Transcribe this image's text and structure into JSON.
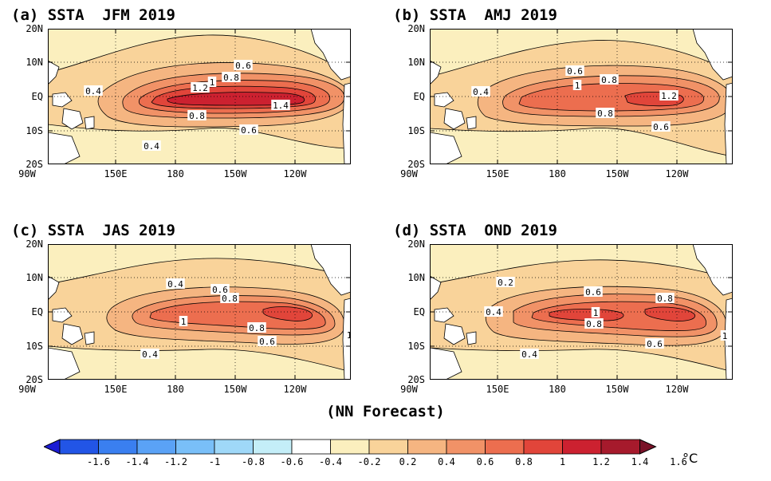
{
  "panels": [
    {
      "title": "(a) SSTA  JFM 2019",
      "contour_labels": [
        "0.6",
        "0.8",
        "1",
        "1.2",
        "1.4",
        "0.8",
        "0.6",
        "0.4",
        "0.4"
      ]
    },
    {
      "title": "(b) SSTA  AMJ 2019",
      "contour_labels": [
        "0.6",
        "0.8",
        "1",
        "1.2",
        "0.8",
        "0.6",
        "0.4"
      ]
    },
    {
      "title": "(c) SSTA  JAS 2019",
      "contour_labels": [
        "0.4",
        "0.6",
        "0.8",
        "1",
        "0.8",
        "0.6",
        "1",
        "0.4"
      ]
    },
    {
      "title": "(d) SSTA  OND 2019",
      "contour_labels": [
        "0.2",
        "0.4",
        "0.6",
        "0.8",
        "1",
        "0.8",
        "0.6",
        "1",
        "0.4"
      ]
    }
  ],
  "y_ticks": [
    "20N",
    "10N",
    "EQ",
    "10S",
    "20S"
  ],
  "x_ticks": [
    "150E",
    "180",
    "150W",
    "120W",
    "90W"
  ],
  "footer": "(NN Forecast)",
  "colorbar": {
    "labels": [
      "-1.6",
      "-1.4",
      "-1.2",
      "-1",
      "-0.8",
      "-0.6",
      "-0.4",
      "-0.2",
      "0.2",
      "0.4",
      "0.6",
      "0.8",
      "1",
      "1.2",
      "1.4",
      "1.6"
    ],
    "unit": "°C",
    "colors": [
      "#1c1cd4",
      "#2255e6",
      "#3a7ff0",
      "#5aa2f6",
      "#79bff8",
      "#9fd8f8",
      "#c4eef8",
      "#ffffff",
      "#fbefbe",
      "#f9d39a",
      "#f5b581",
      "#f19267",
      "#ec6e4f",
      "#e1453a",
      "#cc2130",
      "#a61a2c",
      "#7a1228"
    ]
  }
}
